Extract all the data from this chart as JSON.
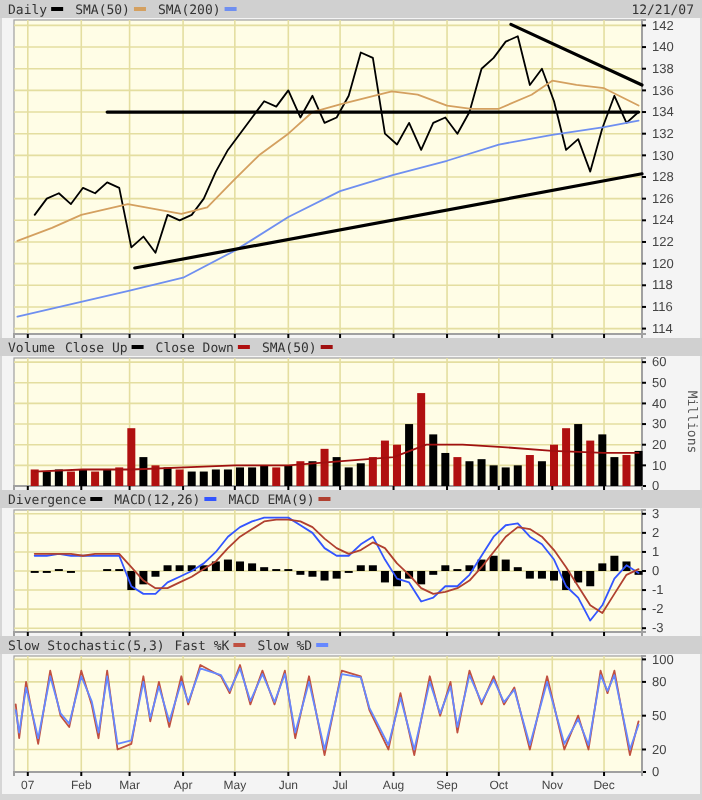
{
  "chart_data": [
    {
      "type": "line",
      "legend": "top",
      "grid": true,
      "tick_labels": "y",
      "annotations": [
        "12/21/07"
      ],
      "x": [
        "2007-01-05",
        "2007-01-12",
        "2007-01-19",
        "2007-01-26",
        "2007-02-02",
        "2007-02-09",
        "2007-02-16",
        "2007-02-23",
        "2007-03-02",
        "2007-03-09",
        "2007-03-16",
        "2007-03-23",
        "2007-03-30",
        "2007-04-06",
        "2007-04-13",
        "2007-04-20",
        "2007-04-27",
        "2007-05-04",
        "2007-05-11",
        "2007-05-18",
        "2007-05-25",
        "2007-06-01",
        "2007-06-08",
        "2007-06-15",
        "2007-06-22",
        "2007-06-29",
        "2007-07-06",
        "2007-07-13",
        "2007-07-20",
        "2007-07-27",
        "2007-08-03",
        "2007-08-10",
        "2007-08-17",
        "2007-08-24",
        "2007-08-31",
        "2007-09-07",
        "2007-09-14",
        "2007-09-21",
        "2007-09-28",
        "2007-10-05",
        "2007-10-12",
        "2007-10-19",
        "2007-10-26",
        "2007-11-02",
        "2007-11-09",
        "2007-11-16",
        "2007-11-23",
        "2007-11-30",
        "2007-12-07",
        "2007-12-14",
        "2007-12-21"
      ],
      "xlim": [
        "2006-12-24",
        "2007-12-23"
      ],
      "xticks": [
        {
          "value": "2007-01-01",
          "label": null
        },
        {
          "value": "2007-02-01",
          "label": null
        },
        {
          "value": "2007-03-01",
          "label": null
        },
        {
          "value": "2007-04-01",
          "label": null
        },
        {
          "value": "2007-05-01",
          "label": null
        },
        {
          "value": "2007-06-01",
          "label": null
        },
        {
          "value": "2007-07-01",
          "label": null
        },
        {
          "value": "2007-08-01",
          "label": null
        },
        {
          "value": "2007-09-01",
          "label": null
        },
        {
          "value": "2007-10-01",
          "label": null
        },
        {
          "value": "2007-11-01",
          "label": null
        },
        {
          "value": "2007-12-01",
          "label": null
        }
      ],
      "ylim": [
        113.5,
        142.5
      ],
      "yticks": [
        114,
        116,
        118,
        120,
        122,
        124,
        126,
        128,
        130,
        132,
        134,
        136,
        138,
        140,
        142
      ],
      "series": [
        {
          "name": "Daily",
          "color": "#000000",
          "values": [
            124.5,
            126.0,
            126.5,
            125.5,
            127.0,
            126.5,
            127.5,
            127.0,
            121.5,
            122.5,
            121.0,
            124.5,
            124.0,
            124.5,
            126.0,
            128.5,
            130.5,
            132.0,
            133.5,
            135.0,
            134.5,
            136.0,
            133.5,
            135.5,
            133.0,
            133.5,
            135.5,
            139.5,
            139.0,
            132.0,
            131.0,
            133.0,
            130.5,
            133.0,
            133.5,
            132.0,
            134.0,
            138.0,
            139.0,
            140.5,
            141.0,
            136.5,
            138.0,
            135.0,
            130.5,
            131.5,
            128.5,
            132.5,
            135.5,
            133.0,
            134.0
          ]
        },
        {
          "name": "SMA(50)",
          "color": "#d4a060",
          "x": [
            "2006-12-26",
            "2007-01-15",
            "2007-02-01",
            "2007-02-28",
            "2007-03-31",
            "2007-04-15",
            "2007-05-01",
            "2007-05-15",
            "2007-06-01",
            "2007-06-15",
            "2007-07-01",
            "2007-07-31",
            "2007-08-15",
            "2007-09-01",
            "2007-09-15",
            "2007-10-01",
            "2007-10-20",
            "2007-11-01",
            "2007-11-15",
            "2007-12-01",
            "2007-12-21"
          ],
          "values": [
            122.1,
            123.3,
            124.5,
            125.5,
            124.6,
            125.2,
            127.8,
            130.0,
            132.0,
            134.0,
            134.7,
            135.9,
            135.6,
            134.6,
            134.3,
            134.3,
            135.6,
            136.9,
            136.5,
            136.2,
            134.6
          ]
        },
        {
          "name": "SMA(200)",
          "color": "#6f8ff0",
          "x": [
            "2006-12-26",
            "2007-03-01",
            "2007-04-01",
            "2007-05-01",
            "2007-06-01",
            "2007-07-01",
            "2007-08-01",
            "2007-09-01",
            "2007-10-01",
            "2007-11-01",
            "2007-12-01",
            "2007-12-21"
          ],
          "values": [
            115.1,
            117.5,
            118.7,
            121.2,
            124.3,
            126.7,
            128.2,
            129.5,
            131.0,
            131.9,
            132.6,
            133.2
          ]
        },
        {
          "color": "#000000",
          "x": [
            "2007-02-16",
            "2007-12-21"
          ],
          "values": [
            134,
            134
          ]
        },
        {
          "color": "#000000",
          "x": [
            "2007-03-04",
            "2007-12-23"
          ],
          "values": [
            119.6,
            128.3
          ]
        },
        {
          "color": "#000000",
          "x": [
            "2007-10-08",
            "2007-12-23"
          ],
          "values": [
            142.1,
            136.5
          ]
        }
      ]
    },
    {
      "type": "bar",
      "title": "Volume",
      "ylabel": "Millions",
      "legend": "top",
      "grid": true,
      "tick_labels": "y",
      "x": [
        "2007-01-05",
        "2007-01-12",
        "2007-01-19",
        "2007-01-26",
        "2007-02-02",
        "2007-02-09",
        "2007-02-16",
        "2007-02-23",
        "2007-03-02",
        "2007-03-09",
        "2007-03-16",
        "2007-03-23",
        "2007-03-30",
        "2007-04-06",
        "2007-04-13",
        "2007-04-20",
        "2007-04-27",
        "2007-05-04",
        "2007-05-11",
        "2007-05-18",
        "2007-05-25",
        "2007-06-01",
        "2007-06-08",
        "2007-06-15",
        "2007-06-22",
        "2007-06-29",
        "2007-07-06",
        "2007-07-13",
        "2007-07-20",
        "2007-07-27",
        "2007-08-03",
        "2007-08-10",
        "2007-08-17",
        "2007-08-24",
        "2007-08-31",
        "2007-09-07",
        "2007-09-14",
        "2007-09-21",
        "2007-09-28",
        "2007-10-05",
        "2007-10-12",
        "2007-10-19",
        "2007-10-26",
        "2007-11-02",
        "2007-11-09",
        "2007-11-16",
        "2007-11-23",
        "2007-11-30",
        "2007-12-07",
        "2007-12-14",
        "2007-12-21"
      ],
      "xlim": [
        "2006-12-24",
        "2007-12-23"
      ],
      "xticks": [
        {
          "value": "2007-01-01",
          "label": null
        },
        {
          "value": "2007-02-01",
          "label": null
        },
        {
          "value": "2007-03-01",
          "label": null
        },
        {
          "value": "2007-04-01",
          "label": null
        },
        {
          "value": "2007-05-01",
          "label": null
        },
        {
          "value": "2007-06-01",
          "label": null
        },
        {
          "value": "2007-07-01",
          "label": null
        },
        {
          "value": "2007-08-01",
          "label": null
        },
        {
          "value": "2007-09-01",
          "label": null
        },
        {
          "value": "2007-10-01",
          "label": null
        },
        {
          "value": "2007-11-01",
          "label": null
        },
        {
          "value": "2007-12-01",
          "label": null
        }
      ],
      "ylim": [
        0,
        62
      ],
      "yticks": [
        0,
        10,
        20,
        30,
        40,
        50,
        60
      ],
      "series": [
        {
          "name": "Close Up",
          "color": "#000000",
          "values": [
            null,
            7,
            8,
            null,
            8,
            null,
            8,
            null,
            null,
            14,
            null,
            9,
            null,
            7,
            7,
            8,
            8,
            9,
            9,
            10,
            null,
            10,
            null,
            12,
            null,
            14,
            9,
            11,
            null,
            null,
            null,
            30,
            null,
            25,
            16,
            null,
            12,
            13,
            10,
            9,
            10,
            null,
            12,
            null,
            null,
            30,
            null,
            25,
            14,
            null,
            17
          ]
        },
        {
          "name": "Close Down",
          "color": "#b01010",
          "values": [
            8,
            null,
            null,
            7,
            null,
            7,
            null,
            9,
            28,
            null,
            10,
            null,
            8,
            null,
            null,
            null,
            null,
            null,
            null,
            null,
            9,
            null,
            12,
            null,
            18,
            null,
            null,
            null,
            14,
            22,
            20,
            null,
            45,
            null,
            null,
            14,
            null,
            null,
            null,
            null,
            null,
            15,
            null,
            20,
            28,
            null,
            22,
            null,
            null,
            15,
            null
          ]
        },
        {
          "name": "SMA(50)",
          "type": "line",
          "color": "#a01010",
          "x": [
            "2007-01-05",
            "2007-02-02",
            "2007-03-02",
            "2007-04-02",
            "2007-05-01",
            "2007-06-01",
            "2007-07-02",
            "2007-08-01",
            "2007-08-20",
            "2007-09-10",
            "2007-10-01",
            "2007-11-01",
            "2007-12-01",
            "2007-12-21"
          ],
          "values": [
            7,
            8,
            8,
            9,
            10,
            10,
            12,
            14,
            20,
            20,
            19,
            17,
            16,
            16
          ]
        }
      ]
    },
    {
      "type": "line",
      "legend": "top",
      "grid": true,
      "tick_labels": "y",
      "x": [
        "2007-01-05",
        "2007-01-12",
        "2007-01-19",
        "2007-01-26",
        "2007-02-02",
        "2007-02-09",
        "2007-02-16",
        "2007-02-23",
        "2007-03-02",
        "2007-03-09",
        "2007-03-16",
        "2007-03-23",
        "2007-03-30",
        "2007-04-06",
        "2007-04-13",
        "2007-04-20",
        "2007-04-27",
        "2007-05-04",
        "2007-05-11",
        "2007-05-18",
        "2007-05-25",
        "2007-06-01",
        "2007-06-08",
        "2007-06-15",
        "2007-06-22",
        "2007-06-29",
        "2007-07-06",
        "2007-07-13",
        "2007-07-20",
        "2007-07-27",
        "2007-08-03",
        "2007-08-10",
        "2007-08-17",
        "2007-08-24",
        "2007-08-31",
        "2007-09-07",
        "2007-09-14",
        "2007-09-21",
        "2007-09-28",
        "2007-10-05",
        "2007-10-12",
        "2007-10-19",
        "2007-10-26",
        "2007-11-02",
        "2007-11-09",
        "2007-11-16",
        "2007-11-23",
        "2007-11-30",
        "2007-12-07",
        "2007-12-14",
        "2007-12-21"
      ],
      "xlim": [
        "2006-12-24",
        "2007-12-23"
      ],
      "xticks": [
        {
          "value": "2007-01-01",
          "label": null
        },
        {
          "value": "2007-02-01",
          "label": null
        },
        {
          "value": "2007-03-01",
          "label": null
        },
        {
          "value": "2007-04-01",
          "label": null
        },
        {
          "value": "2007-05-01",
          "label": null
        },
        {
          "value": "2007-06-01",
          "label": null
        },
        {
          "value": "2007-07-01",
          "label": null
        },
        {
          "value": "2007-08-01",
          "label": null
        },
        {
          "value": "2007-09-01",
          "label": null
        },
        {
          "value": "2007-10-01",
          "label": null
        },
        {
          "value": "2007-11-01",
          "label": null
        },
        {
          "value": "2007-12-01",
          "label": null
        }
      ],
      "ylim": [
        -3.2,
        3.2
      ],
      "yticks": [
        -3,
        -2,
        -1,
        0,
        1,
        2,
        3
      ],
      "series": [
        {
          "name": "Divergence",
          "type": "bar",
          "color": "#000000",
          "values": [
            -0.1,
            -0.1,
            0.1,
            -0.1,
            0,
            0,
            0.1,
            0.1,
            -1.0,
            -0.7,
            -0.3,
            0.3,
            0.3,
            0.3,
            0.3,
            0.5,
            0.6,
            0.5,
            0.4,
            0.2,
            0.1,
            0.1,
            -0.2,
            -0.3,
            -0.5,
            -0.4,
            -0.1,
            0.3,
            0.3,
            -0.6,
            -0.8,
            -0.4,
            -0.7,
            -0.2,
            0.3,
            0.1,
            0.3,
            0.6,
            0.8,
            0.6,
            0.2,
            -0.4,
            -0.4,
            -0.5,
            -1.0,
            -0.6,
            -0.8,
            0.4,
            0.8,
            0.5,
            -0.2
          ]
        },
        {
          "name": "MACD(12,26)",
          "color": "#3355ff",
          "values": [
            0.8,
            0.8,
            0.9,
            0.8,
            0.8,
            0.8,
            0.8,
            0.8,
            -0.8,
            -1.2,
            -1.2,
            -0.6,
            -0.3,
            0.0,
            0.4,
            1.0,
            1.8,
            2.3,
            2.6,
            2.8,
            2.8,
            2.8,
            2.4,
            2.0,
            1.2,
            0.8,
            0.8,
            1.4,
            1.8,
            0.6,
            -0.4,
            -0.6,
            -1.6,
            -1.4,
            -0.8,
            -0.8,
            -0.2,
            0.8,
            1.8,
            2.4,
            2.5,
            1.8,
            1.4,
            0.6,
            -0.8,
            -1.4,
            -2.6,
            -1.8,
            -0.4,
            0.3,
            -0.1
          ]
        },
        {
          "name": "MACD EMA(9)",
          "color": "#b04030",
          "values": [
            0.9,
            0.9,
            0.9,
            0.9,
            0.8,
            0.9,
            0.9,
            0.9,
            0.2,
            -0.5,
            -0.9,
            -0.9,
            -0.6,
            -0.3,
            0.1,
            0.5,
            1.2,
            1.8,
            2.2,
            2.6,
            2.7,
            2.7,
            2.6,
            2.3,
            1.7,
            1.2,
            0.9,
            1.1,
            1.5,
            1.2,
            0.4,
            -0.2,
            -0.9,
            -1.2,
            -1.1,
            -0.9,
            -0.5,
            0.2,
            1.0,
            1.8,
            2.3,
            2.2,
            1.8,
            1.1,
            0.2,
            -0.8,
            -1.8,
            -2.2,
            -1.2,
            -0.2,
            0.1
          ]
        }
      ]
    },
    {
      "type": "line",
      "title": "Slow Stochastic(5,3)",
      "legend": "top",
      "grid": true,
      "x": [
        "2006-12-25",
        "2006-12-27",
        "2006-12-31",
        "2007-01-07",
        "2007-01-14",
        "2007-01-20",
        "2007-01-25",
        "2007-02-01",
        "2007-02-07",
        "2007-02-11",
        "2007-02-16",
        "2007-02-22",
        "2007-03-02",
        "2007-03-09",
        "2007-03-13",
        "2007-03-18",
        "2007-03-24",
        "2007-03-31",
        "2007-04-04",
        "2007-04-11",
        "2007-04-23",
        "2007-04-28",
        "2007-05-04",
        "2007-05-10",
        "2007-05-17",
        "2007-05-24",
        "2007-05-30",
        "2007-06-05",
        "2007-06-13",
        "2007-06-22",
        "2007-07-02",
        "2007-07-13",
        "2007-07-18",
        "2007-07-29",
        "2007-08-05",
        "2007-08-13",
        "2007-08-22",
        "2007-08-28",
        "2007-09-03",
        "2007-09-07",
        "2007-09-14",
        "2007-09-21",
        "2007-09-28",
        "2007-10-04",
        "2007-10-10",
        "2007-10-19",
        "2007-10-29",
        "2007-11-08",
        "2007-11-16",
        "2007-11-22",
        "2007-11-29",
        "2007-12-03",
        "2007-12-07",
        "2007-12-16",
        "2007-12-21"
      ],
      "xlim": [
        "2006-12-24",
        "2007-12-23"
      ],
      "xticks": [
        {
          "value": "2007-01-01",
          "label": "07"
        },
        {
          "value": "2007-02-01",
          "label": "Feb"
        },
        {
          "value": "2007-03-01",
          "label": "Mar"
        },
        {
          "value": "2007-04-01",
          "label": "Apr"
        },
        {
          "value": "2007-05-01",
          "label": "May"
        },
        {
          "value": "2007-06-01",
          "label": "Jun"
        },
        {
          "value": "2007-07-01",
          "label": "Jul"
        },
        {
          "value": "2007-08-01",
          "label": "Aug"
        },
        {
          "value": "2007-09-01",
          "label": "Sep"
        },
        {
          "value": "2007-10-01",
          "label": "Oct"
        },
        {
          "value": "2007-11-01",
          "label": "Nov"
        },
        {
          "value": "2007-12-01",
          "label": "Dec"
        }
      ],
      "ylim": [
        0,
        103
      ],
      "yticks": [
        0,
        20,
        50,
        80,
        100
      ],
      "series": [
        {
          "name": "Fast %K",
          "color": "#c05040",
          "values": [
            60,
            30,
            80,
            25,
            90,
            50,
            40,
            90,
            60,
            30,
            90,
            20,
            25,
            85,
            45,
            80,
            40,
            85,
            60,
            95,
            85,
            70,
            95,
            60,
            90,
            60,
            90,
            30,
            85,
            15,
            90,
            85,
            55,
            20,
            70,
            15,
            85,
            50,
            80,
            35,
            90,
            60,
            85,
            60,
            75,
            20,
            85,
            20,
            50,
            20,
            90,
            70,
            90,
            15,
            45
          ]
        },
        {
          "name": "Slow %D",
          "color": "#6688ff",
          "values": [
            55,
            35,
            75,
            30,
            85,
            52,
            43,
            85,
            63,
            35,
            85,
            25,
            28,
            80,
            48,
            76,
            45,
            80,
            62,
            92,
            86,
            72,
            92,
            63,
            87,
            62,
            87,
            35,
            80,
            20,
            87,
            84,
            57,
            24,
            66,
            20,
            80,
            52,
            76,
            40,
            86,
            62,
            82,
            62,
            73,
            24,
            80,
            25,
            47,
            24,
            86,
            72,
            86,
            20,
            42
          ]
        }
      ]
    }
  ]
}
